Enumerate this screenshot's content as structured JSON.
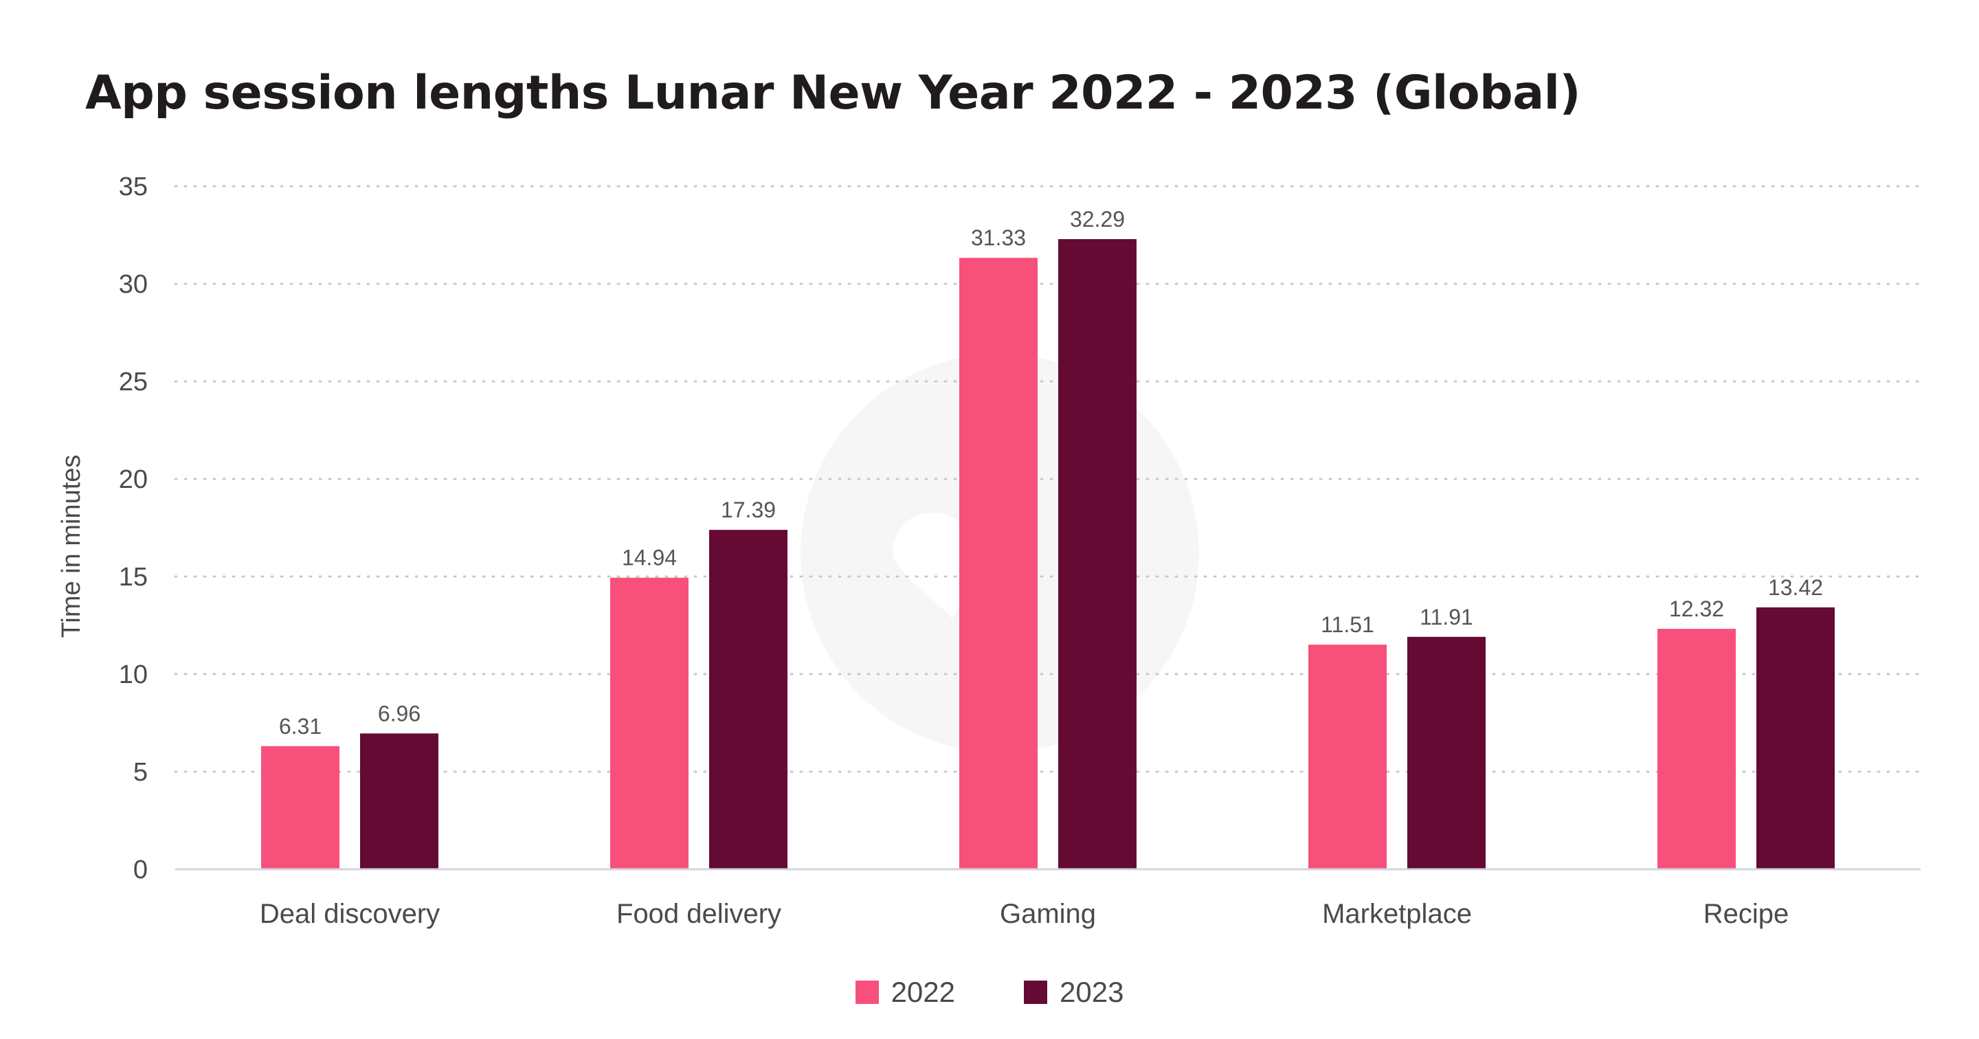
{
  "chart_data": {
    "type": "bar",
    "title": "App session lengths Lunar New Year 2022 - 2023 (Global)",
    "xlabel": "",
    "ylabel": "Time in minutes",
    "categories": [
      "Deal discovery",
      "Food delivery",
      "Gaming",
      "Marketplace",
      "Recipe"
    ],
    "series": [
      {
        "name": "2022",
        "values": [
          6.31,
          14.94,
          31.33,
          11.51,
          12.32
        ],
        "color": "#f7507b"
      },
      {
        "name": "2023",
        "values": [
          6.96,
          17.39,
          32.29,
          11.91,
          13.42
        ],
        "color": "#640a33"
      }
    ],
    "ylim": [
      0,
      35
    ],
    "yticks": [
      0,
      5,
      10,
      15,
      20,
      25,
      30,
      35
    ],
    "grid": true,
    "legend_position": "bottom-center",
    "data_labels": true
  }
}
